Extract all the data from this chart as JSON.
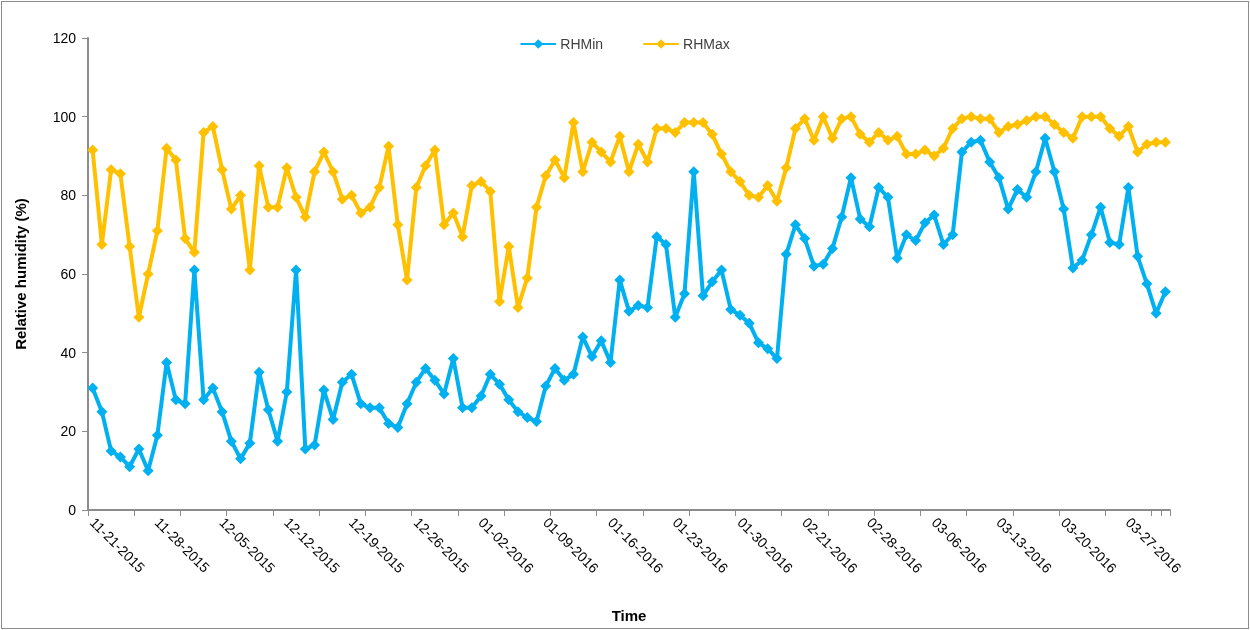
{
  "chart_data": {
    "type": "line",
    "xlabel": "Time",
    "ylabel": "Relative humidity (%)",
    "categories": [
      "11-21-2015",
      null,
      null,
      null,
      null,
      null,
      null,
      "11-28-2015",
      null,
      null,
      null,
      null,
      null,
      null,
      "12-05-2015",
      null,
      null,
      null,
      null,
      null,
      null,
      "12-12-2015",
      null,
      null,
      null,
      null,
      null,
      null,
      "12-19-2015",
      null,
      null,
      null,
      null,
      null,
      null,
      "12-26-2015",
      null,
      null,
      null,
      null,
      null,
      null,
      "01-02-2016",
      null,
      null,
      null,
      null,
      null,
      null,
      "01-09-2016",
      null,
      null,
      null,
      null,
      null,
      null,
      "01-16-2016",
      null,
      null,
      null,
      null,
      null,
      null,
      "01-23-2016",
      null,
      null,
      null,
      null,
      null,
      null,
      "01-30-2016",
      null,
      null,
      null,
      null,
      null,
      null,
      "02-21-2016",
      null,
      null,
      null,
      null,
      null,
      null,
      "02-28-2016",
      null,
      null,
      null,
      null,
      null,
      null,
      "03-06-2016",
      null,
      null,
      null,
      null,
      null,
      null,
      "03-13-2016",
      null,
      null,
      null,
      null,
      null,
      null,
      "03-20-2016",
      null,
      null,
      null,
      null,
      null,
      null,
      "03-27-2016",
      null,
      null,
      null,
      null
    ],
    "series": [
      {
        "name": "RHMin",
        "color": "#00b0f0",
        "values": [
          31,
          25,
          15,
          13.5,
          11,
          15.5,
          10,
          19,
          37.5,
          28,
          27,
          61,
          28,
          31,
          25,
          17.5,
          13,
          17,
          35,
          25.5,
          17.5,
          30,
          61,
          15.5,
          16.5,
          30.5,
          23,
          32.5,
          34.5,
          27,
          26,
          26,
          22,
          21,
          27,
          32.5,
          36,
          33,
          29.5,
          38.5,
          26,
          26,
          29,
          34.5,
          32,
          28,
          25,
          23.5,
          22.5,
          31.5,
          36,
          33,
          34.5,
          44,
          39,
          43,
          37.5,
          58.5,
          50.5,
          52,
          51.5,
          69.5,
          67.5,
          49,
          55,
          86,
          54.5,
          58,
          61,
          51,
          49.5,
          47.5,
          42.5,
          41,
          38.5,
          65,
          72.5,
          69,
          62,
          62.5,
          66.5,
          74.5,
          84.5,
          74,
          72,
          82,
          79.5,
          64,
          70,
          68.5,
          73,
          75,
          67.5,
          70,
          91,
          93.5,
          94,
          88.5,
          84.5,
          76.5,
          81.5,
          79.5,
          86,
          94.5,
          86,
          76.5,
          61.5,
          63.5,
          70,
          77,
          68,
          67.5,
          82,
          64.5,
          57.5,
          50,
          55.5
        ]
      },
      {
        "name": "RHMax",
        "color": "#ffc000",
        "values": [
          91.5,
          67.5,
          86.5,
          85.5,
          67,
          49,
          60,
          71,
          92,
          89,
          69,
          65.5,
          96,
          97.5,
          86.5,
          76.5,
          80,
          61,
          87.5,
          77,
          77,
          87,
          79.5,
          74.5,
          86,
          91,
          86,
          79,
          80,
          75.5,
          77,
          82,
          92.5,
          72.5,
          58.5,
          82,
          87.5,
          91.5,
          72.5,
          75.5,
          69.5,
          82.5,
          83.5,
          81,
          53,
          67,
          51.5,
          59,
          77,
          85,
          89,
          84.5,
          98.5,
          86,
          93.5,
          91,
          88.5,
          95,
          86,
          93,
          88.5,
          97,
          97,
          96,
          98.5,
          98.5,
          98.5,
          95.5,
          90.5,
          86,
          83.5,
          80,
          79.5,
          82.5,
          78.5,
          87,
          97,
          99.5,
          94,
          100,
          94.5,
          99.5,
          100,
          95.5,
          93.5,
          96,
          94,
          95,
          90.5,
          90.5,
          91.5,
          90,
          92,
          97,
          99.5,
          100,
          99.5,
          99.5,
          96,
          97.5,
          98,
          99,
          100,
          100,
          98,
          96,
          94.5,
          100,
          100,
          100,
          97,
          95,
          97.5,
          91,
          93,
          93.5,
          93.5
        ]
      }
    ],
    "ylim": [
      0,
      120
    ],
    "yticks": [
      0,
      20,
      40,
      60,
      80,
      100,
      120
    ],
    "grid": false,
    "legend": "top",
    "marker": "diamond",
    "line_style": "solid"
  }
}
